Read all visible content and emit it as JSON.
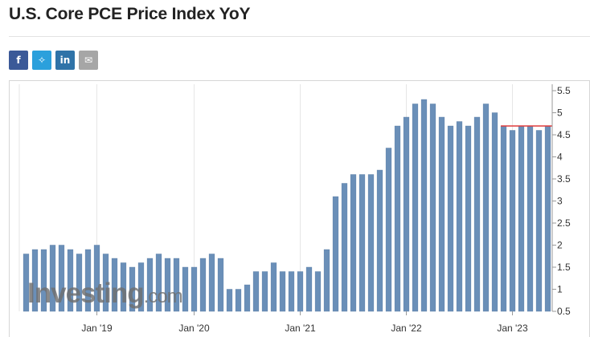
{
  "page": {
    "title": "U.S. Core PCE Price Index YoY"
  },
  "share": [
    {
      "name": "facebook-share-button",
      "glyph": "f",
      "color": "#3b5998"
    },
    {
      "name": "twitter-share-button",
      "glyph": "✧",
      "color": "#2ba0dc"
    },
    {
      "name": "linkedin-share-button",
      "glyph": "in",
      "color": "#2f73a8"
    },
    {
      "name": "email-share-button",
      "glyph": "✉",
      "color": "#a6a6a6"
    }
  ],
  "colors": {
    "bar": "#6a8fb8",
    "bar_edge": "#5579a3",
    "reference_line": "#e03c3c",
    "grid": "#e6e6e6"
  },
  "chart_data": {
    "type": "bar",
    "title": "U.S. Core PCE Price Index YoY",
    "xlabel": "",
    "ylabel": "",
    "ylim": [
      0.5,
      5.5
    ],
    "yticks": [
      "0.5",
      "1",
      "1.5",
      "2",
      "2.5",
      "3",
      "3.5",
      "4",
      "4.5",
      "5",
      "5.5"
    ],
    "y_axis_side": "right",
    "x_tick_labels": [
      "Jan '19",
      "Jan '20",
      "Jan '21",
      "Jan '22",
      "Jan '23"
    ],
    "x_tick_indices": [
      8,
      19,
      31,
      43,
      55
    ],
    "values": [
      1.8,
      1.9,
      1.9,
      2.0,
      2.0,
      1.9,
      1.8,
      1.9,
      2.0,
      1.8,
      1.7,
      1.6,
      1.5,
      1.6,
      1.7,
      1.8,
      1.7,
      1.7,
      1.5,
      1.5,
      1.7,
      1.8,
      1.7,
      1.0,
      1.0,
      1.1,
      1.4,
      1.4,
      1.6,
      1.4,
      1.4,
      1.4,
      1.5,
      1.4,
      1.9,
      3.1,
      3.4,
      3.6,
      3.6,
      3.6,
      3.7,
      4.2,
      4.7,
      4.9,
      5.2,
      5.3,
      5.2,
      4.9,
      4.7,
      4.8,
      4.7,
      4.9,
      5.2,
      5.0,
      4.7,
      4.6,
      4.7,
      4.7,
      4.6,
      4.7
    ],
    "reference_line": {
      "value": 4.7,
      "from_index": 54,
      "to_index": 59
    },
    "grid": "vertical",
    "watermark": "Investing.com"
  }
}
